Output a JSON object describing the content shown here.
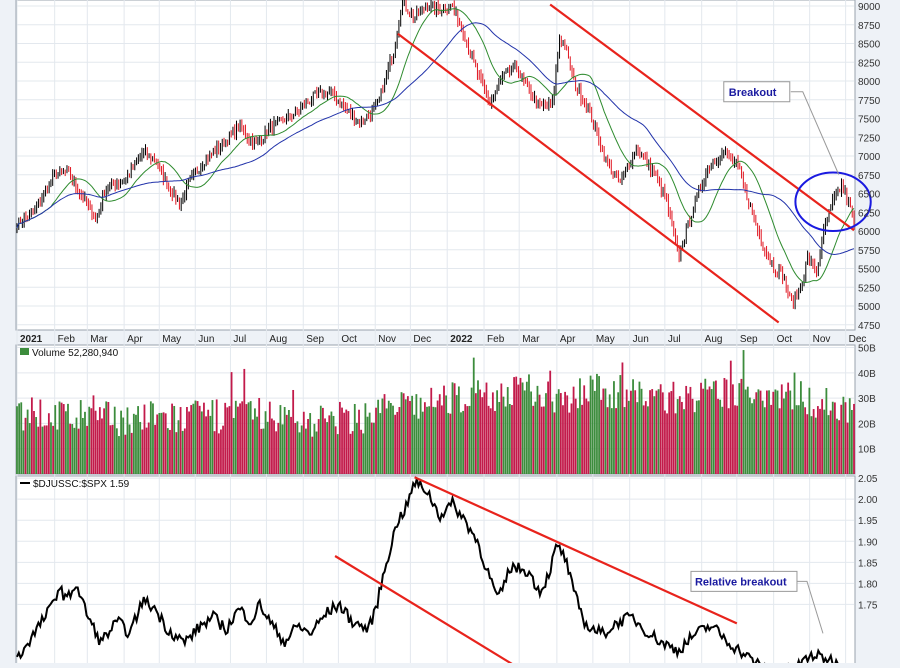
{
  "chart_data": [
    {
      "panel": "price",
      "type": "candlestick",
      "title": "",
      "y_axis": {
        "ticks": [
          4750,
          5000,
          5250,
          5500,
          5750,
          6000,
          6250,
          6500,
          6750,
          7000,
          7250,
          7500,
          7750,
          8000,
          8250,
          8500,
          8750,
          9000
        ],
        "ylim": [
          4680,
          9080
        ]
      },
      "x_axis": {
        "labels": [
          {
            "t": 0,
            "text": "2021",
            "bold": true
          },
          {
            "t": 0.045,
            "text": "Feb"
          },
          {
            "t": 0.084,
            "text": "Mar"
          },
          {
            "t": 0.128,
            "text": "Apr"
          },
          {
            "t": 0.17,
            "text": "May"
          },
          {
            "t": 0.213,
            "text": "Jun"
          },
          {
            "t": 0.255,
            "text": "Jul"
          },
          {
            "t": 0.298,
            "text": "Aug"
          },
          {
            "t": 0.342,
            "text": "Sep"
          },
          {
            "t": 0.384,
            "text": "Oct"
          },
          {
            "t": 0.428,
            "text": "Nov"
          },
          {
            "t": 0.47,
            "text": "Dec"
          },
          {
            "t": 0.514,
            "text": "2022",
            "bold": true
          },
          {
            "t": 0.558,
            "text": "Feb"
          },
          {
            "t": 0.6,
            "text": "Mar"
          },
          {
            "t": 0.645,
            "text": "Apr"
          },
          {
            "t": 0.688,
            "text": "May"
          },
          {
            "t": 0.732,
            "text": "Jun"
          },
          {
            "t": 0.774,
            "text": "Jul"
          },
          {
            "t": 0.818,
            "text": "Aug"
          },
          {
            "t": 0.86,
            "text": "Sep"
          },
          {
            "t": 0.904,
            "text": "Oct"
          },
          {
            "t": 0.947,
            "text": "Nov"
          },
          {
            "t": 0.99,
            "text": "Dec"
          }
        ]
      },
      "close_anchors": [
        [
          0,
          6100
        ],
        [
          0.02,
          6250
        ],
        [
          0.045,
          6750
        ],
        [
          0.06,
          6800
        ],
        [
          0.075,
          6500
        ],
        [
          0.095,
          6150
        ],
        [
          0.105,
          6550
        ],
        [
          0.13,
          6700
        ],
        [
          0.15,
          7050
        ],
        [
          0.165,
          6950
        ],
        [
          0.18,
          6600
        ],
        [
          0.195,
          6350
        ],
        [
          0.205,
          6650
        ],
        [
          0.225,
          6950
        ],
        [
          0.245,
          7150
        ],
        [
          0.265,
          7400
        ],
        [
          0.285,
          7150
        ],
        [
          0.305,
          7400
        ],
        [
          0.33,
          7550
        ],
        [
          0.355,
          7800
        ],
        [
          0.375,
          7850
        ],
        [
          0.395,
          7600
        ],
        [
          0.41,
          7450
        ],
        [
          0.43,
          7650
        ],
        [
          0.45,
          8400
        ],
        [
          0.46,
          9050
        ],
        [
          0.475,
          8850
        ],
        [
          0.49,
          9000
        ],
        [
          0.505,
          8950
        ],
        [
          0.52,
          9000
        ],
        [
          0.535,
          8600
        ],
        [
          0.55,
          8100
        ],
        [
          0.565,
          7700
        ],
        [
          0.58,
          8050
        ],
        [
          0.595,
          8200
        ],
        [
          0.61,
          7900
        ],
        [
          0.625,
          7650
        ],
        [
          0.64,
          7700
        ],
        [
          0.648,
          8600
        ],
        [
          0.655,
          8450
        ],
        [
          0.665,
          8000
        ],
        [
          0.685,
          7550
        ],
        [
          0.705,
          6900
        ],
        [
          0.72,
          6650
        ],
        [
          0.74,
          7100
        ],
        [
          0.76,
          6800
        ],
        [
          0.775,
          6450
        ],
        [
          0.79,
          5650
        ],
        [
          0.805,
          6200
        ],
        [
          0.825,
          6850
        ],
        [
          0.845,
          7050
        ],
        [
          0.862,
          6850
        ],
        [
          0.875,
          6350
        ],
        [
          0.89,
          5850
        ],
        [
          0.905,
          5500
        ],
        [
          0.915,
          5400
        ],
        [
          0.925,
          5050
        ],
        [
          0.935,
          5200
        ],
        [
          0.945,
          5650
        ],
        [
          0.955,
          5450
        ],
        [
          0.965,
          6050
        ],
        [
          0.975,
          6400
        ],
        [
          0.985,
          6600
        ],
        [
          0.995,
          6350
        ],
        [
          1.0,
          6050
        ]
      ],
      "series": [
        {
          "name": "price",
          "color": "#000000"
        },
        {
          "name": "ma-short",
          "color": "#2e8b2e"
        },
        {
          "name": "ma-long",
          "color": "#2233aa"
        }
      ],
      "trendlines": [
        {
          "color": "#e8231c",
          "from": [
            0.455,
            8630
          ],
          "to": [
            0.91,
            4780
          ]
        },
        {
          "color": "#e8231c",
          "from": [
            0.637,
            9020
          ],
          "to": [
            1.0,
            6010
          ]
        }
      ],
      "annotations": [
        {
          "type": "label",
          "text": "Breakout",
          "box": [
            0.848,
            7830
          ]
        },
        {
          "type": "ellipse",
          "color": "#1a1ae0",
          "center": [
            0.975,
            6390
          ],
          "rx_t": 0.045,
          "ry_val": 780
        }
      ]
    },
    {
      "panel": "volume",
      "type": "bar",
      "legend": "Volume 52,280,940",
      "y_axis": {
        "ticks": [
          {
            "v": 10,
            "text": "10B"
          },
          {
            "v": 20,
            "text": "20B"
          },
          {
            "v": 30,
            "text": "30B"
          },
          {
            "v": 40,
            "text": "40B"
          },
          {
            "v": 50,
            "text": "50B"
          }
        ],
        "ylim": [
          0,
          51
        ]
      },
      "level_anchors": [
        [
          0,
          24
        ],
        [
          0.1,
          22
        ],
        [
          0.2,
          22
        ],
        [
          0.28,
          24
        ],
        [
          0.34,
          21
        ],
        [
          0.41,
          22
        ],
        [
          0.43,
          26
        ],
        [
          0.5,
          27
        ],
        [
          0.52,
          30
        ],
        [
          0.6,
          32
        ],
        [
          0.66,
          31
        ],
        [
          0.7,
          33
        ],
        [
          0.75,
          31
        ],
        [
          0.8,
          30
        ],
        [
          0.86,
          32
        ],
        [
          0.9,
          33
        ],
        [
          0.95,
          29
        ],
        [
          1.0,
          26
        ]
      ],
      "colors": {
        "up": "#3c8c3c",
        "down": "#c21a4a"
      }
    },
    {
      "panel": "relative",
      "type": "line",
      "legend": "$DJUSSC:$SPX 1.59",
      "y_axis": {
        "ticks": [
          1.75,
          1.8,
          1.85,
          1.9,
          1.95,
          2.0,
          2.05
        ],
        "ylim": [
          1.58,
          2.055
        ]
      },
      "anchors": [
        [
          0,
          1.62
        ],
        [
          0.02,
          1.68
        ],
        [
          0.04,
          1.74
        ],
        [
          0.05,
          1.79
        ],
        [
          0.06,
          1.76
        ],
        [
          0.07,
          1.8
        ],
        [
          0.085,
          1.72
        ],
        [
          0.1,
          1.66
        ],
        [
          0.12,
          1.71
        ],
        [
          0.135,
          1.68
        ],
        [
          0.15,
          1.76
        ],
        [
          0.165,
          1.74
        ],
        [
          0.18,
          1.69
        ],
        [
          0.2,
          1.66
        ],
        [
          0.22,
          1.7
        ],
        [
          0.235,
          1.72
        ],
        [
          0.25,
          1.69
        ],
        [
          0.265,
          1.74
        ],
        [
          0.28,
          1.71
        ],
        [
          0.29,
          1.75
        ],
        [
          0.305,
          1.7
        ],
        [
          0.32,
          1.66
        ],
        [
          0.335,
          1.7
        ],
        [
          0.35,
          1.68
        ],
        [
          0.37,
          1.73
        ],
        [
          0.385,
          1.75
        ],
        [
          0.4,
          1.71
        ],
        [
          0.42,
          1.69
        ],
        [
          0.43,
          1.75
        ],
        [
          0.44,
          1.84
        ],
        [
          0.455,
          1.95
        ],
        [
          0.465,
          1.98
        ],
        [
          0.475,
          2.04
        ],
        [
          0.49,
          2.02
        ],
        [
          0.505,
          1.96
        ],
        [
          0.52,
          1.99
        ],
        [
          0.535,
          1.95
        ],
        [
          0.55,
          1.9
        ],
        [
          0.56,
          1.84
        ],
        [
          0.575,
          1.76
        ],
        [
          0.59,
          1.84
        ],
        [
          0.61,
          1.83
        ],
        [
          0.625,
          1.78
        ],
        [
          0.635,
          1.82
        ],
        [
          0.645,
          1.89
        ],
        [
          0.655,
          1.86
        ],
        [
          0.665,
          1.78
        ],
        [
          0.68,
          1.7
        ],
        [
          0.7,
          1.68
        ],
        [
          0.72,
          1.71
        ],
        [
          0.735,
          1.72
        ],
        [
          0.75,
          1.69
        ],
        [
          0.77,
          1.66
        ],
        [
          0.79,
          1.64
        ],
        [
          0.81,
          1.68
        ],
        [
          0.83,
          1.7
        ],
        [
          0.85,
          1.66
        ],
        [
          0.87,
          1.63
        ],
        [
          0.89,
          1.6
        ],
        [
          0.91,
          1.58
        ],
        [
          0.93,
          1.6
        ],
        [
          0.95,
          1.63
        ],
        [
          0.97,
          1.62
        ],
        [
          0.99,
          1.6
        ],
        [
          1.0,
          1.59
        ]
      ],
      "trendlines": [
        {
          "color": "#e8231c",
          "from": [
            0.475,
            2.052
          ],
          "to": [
            0.86,
            1.705
          ]
        },
        {
          "color": "#e8231c",
          "from": [
            0.38,
            1.865
          ],
          "to": [
            0.615,
            1.58
          ]
        }
      ],
      "annotations": [
        {
          "type": "label",
          "text": "Relative breakout",
          "box": [
            0.81,
            1.8
          ]
        }
      ]
    }
  ]
}
